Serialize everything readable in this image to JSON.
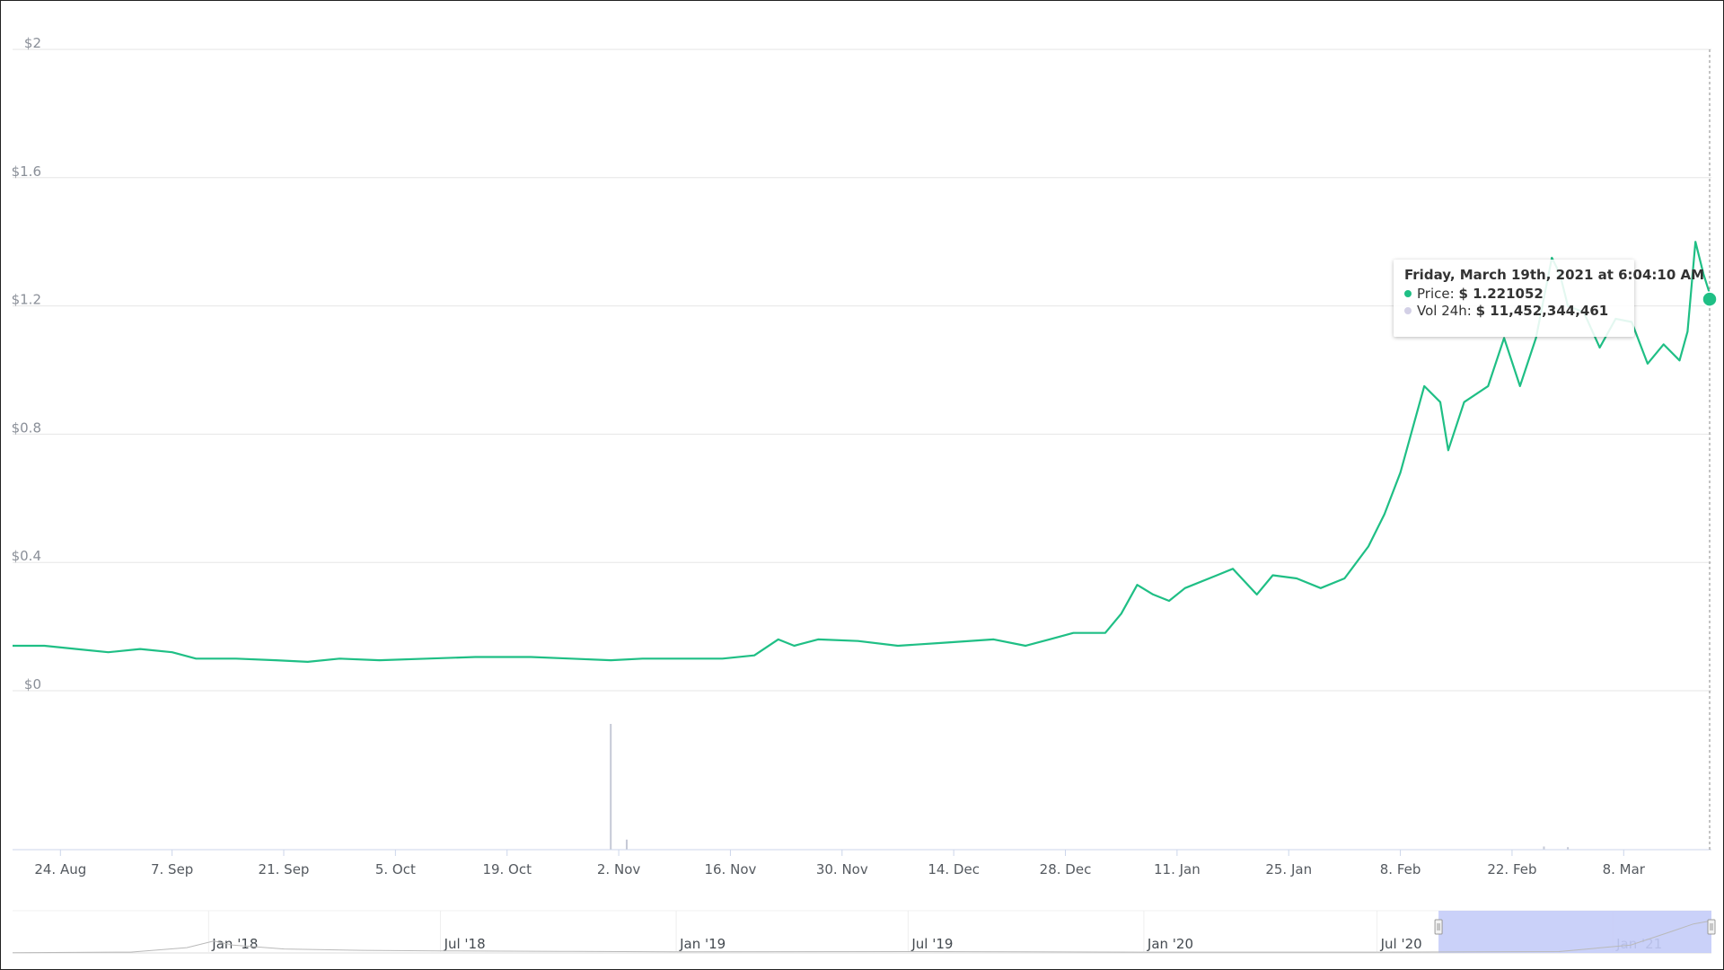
{
  "colors": {
    "price_line": "#1fbf85",
    "volume_bar": "#c5c9d6",
    "grid": "#e6e6e6",
    "navigator_fill": "#c4ccf8",
    "navigator_line": "#b9b9b9"
  },
  "tooltip": {
    "title": "Friday, March 19th, 2021 at 6:04:10 AM",
    "price_label": "Price:",
    "price_value": "$ 1.221052",
    "volume_label": "Vol 24h:",
    "volume_value": "$ 11,452,344,461"
  },
  "chart_data": {
    "type": "line",
    "ylim": [
      0,
      2
    ],
    "y_ticks": [
      "$0",
      "$0.4",
      "$0.8",
      "$1.2",
      "$1.6",
      "$2"
    ],
    "y_tick_values": [
      0,
      0.4,
      0.8,
      1.2,
      1.6,
      2
    ],
    "x_tick_labels": [
      "24. Aug",
      "7. Sep",
      "21. Sep",
      "5. Oct",
      "19. Oct",
      "2. Nov",
      "16. Nov",
      "30. Nov",
      "14. Dec",
      "28. Dec",
      "11. Jan",
      "25. Jan",
      "8. Feb",
      "22. Feb",
      "8. Mar"
    ],
    "x_tick_dates": [
      "2020-08-24",
      "2020-09-07",
      "2020-09-21",
      "2020-10-05",
      "2020-10-19",
      "2020-11-02",
      "2020-11-16",
      "2020-11-30",
      "2020-12-14",
      "2020-12-28",
      "2021-01-11",
      "2021-01-25",
      "2021-02-08",
      "2021-02-22",
      "2021-03-08"
    ],
    "x_range": [
      "2020-08-18",
      "2021-03-19"
    ],
    "grid": true,
    "series": [
      {
        "values": [
          [
            "2020-08-18",
            0.14
          ],
          [
            "2020-08-22",
            0.14
          ],
          [
            "2020-08-26",
            0.13
          ],
          [
            "2020-08-30",
            0.12
          ],
          [
            "2020-09-03",
            0.13
          ],
          [
            "2020-09-07",
            0.12
          ],
          [
            "2020-09-10",
            0.1
          ],
          [
            "2020-09-15",
            0.1
          ],
          [
            "2020-09-20",
            0.095
          ],
          [
            "2020-09-24",
            0.09
          ],
          [
            "2020-09-28",
            0.1
          ],
          [
            "2020-10-03",
            0.095
          ],
          [
            "2020-10-09",
            0.1
          ],
          [
            "2020-10-15",
            0.105
          ],
          [
            "2020-10-22",
            0.105
          ],
          [
            "2020-10-27",
            0.1
          ],
          [
            "2020-11-01",
            0.095
          ],
          [
            "2020-11-05",
            0.1
          ],
          [
            "2020-11-10",
            0.1
          ],
          [
            "2020-11-15",
            0.1
          ],
          [
            "2020-11-19",
            0.11
          ],
          [
            "2020-11-22",
            0.16
          ],
          [
            "2020-11-24",
            0.14
          ],
          [
            "2020-11-27",
            0.16
          ],
          [
            "2020-12-02",
            0.155
          ],
          [
            "2020-12-07",
            0.14
          ],
          [
            "2020-12-13",
            0.15
          ],
          [
            "2020-12-19",
            0.16
          ],
          [
            "2020-12-23",
            0.14
          ],
          [
            "2020-12-26",
            0.16
          ],
          [
            "2020-12-29",
            0.18
          ],
          [
            "2021-01-02",
            0.18
          ],
          [
            "2021-01-04",
            0.24
          ],
          [
            "2021-01-06",
            0.33
          ],
          [
            "2021-01-08",
            0.3
          ],
          [
            "2021-01-10",
            0.28
          ],
          [
            "2021-01-12",
            0.32
          ],
          [
            "2021-01-16",
            0.36
          ],
          [
            "2021-01-18",
            0.38
          ],
          [
            "2021-01-21",
            0.3
          ],
          [
            "2021-01-23",
            0.36
          ],
          [
            "2021-01-26",
            0.35
          ],
          [
            "2021-01-29",
            0.32
          ],
          [
            "2021-02-01",
            0.35
          ],
          [
            "2021-02-04",
            0.45
          ],
          [
            "2021-02-06",
            0.55
          ],
          [
            "2021-02-08",
            0.68
          ],
          [
            "2021-02-11",
            0.95
          ],
          [
            "2021-02-13",
            0.9
          ],
          [
            "2021-02-14",
            0.75
          ],
          [
            "2021-02-16",
            0.9
          ],
          [
            "2021-02-19",
            0.95
          ],
          [
            "2021-02-21",
            1.1
          ],
          [
            "2021-02-23",
            0.95
          ],
          [
            "2021-02-25",
            1.1
          ],
          [
            "2021-02-27",
            1.35
          ],
          [
            "2021-02-28",
            1.3
          ],
          [
            "2021-03-01",
            1.2
          ],
          [
            "2021-03-03",
            1.18
          ],
          [
            "2021-03-05",
            1.07
          ],
          [
            "2021-03-07",
            1.16
          ],
          [
            "2021-03-09",
            1.15
          ],
          [
            "2021-03-11",
            1.02
          ],
          [
            "2021-03-13",
            1.08
          ],
          [
            "2021-03-15",
            1.03
          ],
          [
            "2021-03-16",
            1.12
          ],
          [
            "2021-03-17",
            1.4
          ],
          [
            "2021-03-18",
            1.3
          ],
          [
            "2021-03-19",
            1.221052
          ]
        ]
      }
    ],
    "volume_spikes": [
      [
        "2020-11-01",
        1.0
      ],
      [
        "2020-11-03",
        0.08
      ],
      [
        "2021-02-26",
        0.025
      ],
      [
        "2021-03-01",
        0.02
      ]
    ],
    "navigator": {
      "tick_labels": [
        "Jan '18",
        "Jul '18",
        "Jan '19",
        "Jul '19",
        "Jan '20",
        "Jul '20",
        "Jan '21"
      ],
      "tick_dates": [
        "2018-01-01",
        "2018-07-01",
        "2019-01-01",
        "2019-07-01",
        "2020-01-01",
        "2020-07-01",
        "2021-01-01"
      ],
      "range": [
        "2017-08-01",
        "2021-03-19"
      ],
      "selected": [
        "2020-08-18",
        "2021-03-19"
      ],
      "series": [
        [
          "2017-08-01",
          0.01
        ],
        [
          "2017-11-01",
          0.03
        ],
        [
          "2017-12-15",
          0.2
        ],
        [
          "2018-01-05",
          0.45
        ],
        [
          "2018-01-20",
          0.3
        ],
        [
          "2018-03-01",
          0.15
        ],
        [
          "2018-05-01",
          0.1
        ],
        [
          "2018-07-01",
          0.08
        ],
        [
          "2018-10-01",
          0.06
        ],
        [
          "2019-01-01",
          0.04
        ],
        [
          "2019-07-01",
          0.05
        ],
        [
          "2020-01-01",
          0.03
        ],
        [
          "2020-07-01",
          0.03
        ],
        [
          "2020-11-20",
          0.05
        ],
        [
          "2021-01-15",
          0.3
        ],
        [
          "2021-02-15",
          0.8
        ],
        [
          "2021-03-05",
          1.1
        ],
        [
          "2021-03-19",
          1.221052
        ]
      ]
    }
  }
}
